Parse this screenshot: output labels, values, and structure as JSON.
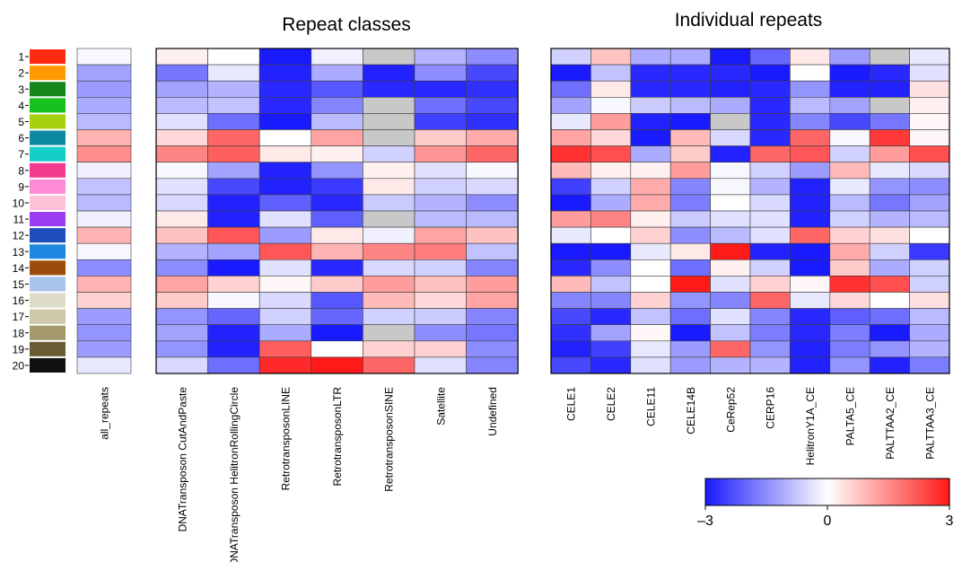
{
  "chart_data": {
    "type": "heatmap",
    "row_labels": [
      "1",
      "2",
      "3",
      "4",
      "5",
      "6",
      "7",
      "8",
      "9",
      "10",
      "11",
      "12",
      "13",
      "14",
      "15",
      "16",
      "17",
      "18",
      "19",
      "20"
    ],
    "row_colors": [
      "#ff2a12",
      "#ff9900",
      "#14861c",
      "#17c21e",
      "#a6d20d",
      "#0d8aa0",
      "#14cec8",
      "#f23b8e",
      "#ff8ad6",
      "#fdc1d8",
      "#9b3df0",
      "#1f4fbc",
      "#1c88e0",
      "#9a4d0b",
      "#a9c4ea",
      "#dddcc8",
      "#cec7a8",
      "#a59a6c",
      "#6a5d35",
      "#111111"
    ],
    "color_scale": {
      "min": -3,
      "max": 3,
      "ticks": [
        "–3",
        "0",
        "3"
      ],
      "colors": {
        "low": "#1a1aff",
        "mid": "#ffffff",
        "high": "#ff1a1a"
      },
      "na_color": "#c8c8c8"
    },
    "panels": [
      {
        "id": "all",
        "title": "",
        "columns": [
          "all_repeats"
        ],
        "values": [
          [
            -0.1
          ],
          [
            -1.2
          ],
          [
            -1.3
          ],
          [
            -1.1
          ],
          [
            -0.9
          ],
          [
            1.0
          ],
          [
            1.5
          ],
          [
            -0.2
          ],
          [
            -0.8
          ],
          [
            -0.9
          ],
          [
            -0.2
          ],
          [
            1.0
          ],
          [
            -0.1
          ],
          [
            -1.5
          ],
          [
            1.0
          ],
          [
            0.6
          ],
          [
            -1.3
          ],
          [
            -1.4
          ],
          [
            -1.3
          ],
          [
            -0.3
          ]
        ]
      },
      {
        "id": "classes",
        "title": "Repeat classes",
        "columns": [
          "DNATransposon CutAndPaste",
          "DNATransposon HelitronRollingCircle",
          "RetrotransposonLINE",
          "RetrotransposonLTR",
          "RetrotransposonSINE",
          "Satellite",
          "Undefined"
        ],
        "values": [
          [
            0.2,
            0.0,
            -3.0,
            -0.2,
            null,
            -1.0,
            -1.5
          ],
          [
            -1.8,
            -0.3,
            -2.9,
            -1.1,
            -2.9,
            -1.5,
            -2.4
          ],
          [
            -1.2,
            -1.0,
            -2.8,
            -2.2,
            -2.8,
            -2.8,
            -2.7
          ],
          [
            -0.9,
            -0.8,
            -2.8,
            -1.6,
            null,
            -1.9,
            -2.4
          ],
          [
            -0.4,
            -1.9,
            -3.0,
            -0.9,
            null,
            -2.5,
            -2.7
          ],
          [
            0.5,
            2.0,
            0.0,
            1.2,
            null,
            0.7,
            1.1
          ],
          [
            1.6,
            2.1,
            0.3,
            0.2,
            -0.6,
            1.4,
            2.0
          ],
          [
            -0.1,
            -1.2,
            -2.9,
            -1.4,
            0.2,
            -0.4,
            -0.1
          ],
          [
            -0.4,
            -2.4,
            -2.9,
            -2.6,
            0.3,
            -0.6,
            -0.5
          ],
          [
            -0.5,
            -2.9,
            -2.1,
            -2.8,
            -0.7,
            -1.0,
            -1.5
          ],
          [
            0.3,
            -2.9,
            -0.4,
            -2.1,
            null,
            -0.9,
            -0.9
          ],
          [
            0.8,
            2.2,
            -1.3,
            0.3,
            -0.2,
            1.2,
            0.8
          ],
          [
            -1.0,
            -1.2,
            2.2,
            1.0,
            1.6,
            1.7,
            -0.8
          ],
          [
            -1.5,
            -3.0,
            -0.4,
            -2.8,
            -0.5,
            -0.6,
            -1.6
          ],
          [
            1.2,
            0.6,
            0.1,
            0.7,
            1.3,
            0.8,
            1.3
          ],
          [
            0.7,
            -0.1,
            -0.5,
            -2.2,
            0.9,
            0.5,
            1.2
          ],
          [
            -1.4,
            -2.0,
            -0.6,
            -2.0,
            -0.6,
            -0.7,
            -1.6
          ],
          [
            -1.2,
            -2.9,
            -1.1,
            -3.0,
            null,
            -1.5,
            -1.8
          ],
          [
            -1.4,
            -2.9,
            2.1,
            0.0,
            0.6,
            0.6,
            -1.5
          ],
          [
            -0.5,
            -1.9,
            2.8,
            3.0,
            2.0,
            -0.4,
            -1.6
          ]
        ]
      },
      {
        "id": "individual",
        "title": "Individual repeats",
        "columns": [
          "CELE1",
          "CELE2",
          "CELE11",
          "CELE14B",
          "CeRep52",
          "CERP16",
          "HelitronY1A_CE",
          "PALTA5_CE",
          "PALTTAA2_CE",
          "PALTTAA3_CE"
        ],
        "values": [
          [
            -0.6,
            0.8,
            -1.1,
            -1.1,
            -3.0,
            -2.0,
            0.3,
            -1.3,
            null,
            -0.3
          ],
          [
            -3.0,
            -0.8,
            -2.8,
            -2.8,
            -2.8,
            -3.0,
            0.0,
            -3.0,
            -2.8,
            -0.4
          ],
          [
            -1.9,
            0.3,
            -2.8,
            -2.8,
            -2.9,
            -2.8,
            -1.4,
            -2.9,
            -2.9,
            0.4
          ],
          [
            -1.2,
            -0.1,
            -0.7,
            -0.9,
            -1.1,
            -2.8,
            -0.9,
            -1.2,
            null,
            0.2
          ],
          [
            -0.3,
            1.3,
            -2.9,
            -3.0,
            null,
            -2.8,
            -1.6,
            -2.4,
            -1.8,
            0.1
          ],
          [
            1.2,
            0.5,
            -3.0,
            0.9,
            -0.5,
            -2.8,
            2.0,
            -0.1,
            2.6,
            0.1
          ],
          [
            2.7,
            2.3,
            -1.1,
            0.7,
            -2.9,
            2.0,
            2.2,
            -0.6,
            1.3,
            2.3
          ],
          [
            0.9,
            0.2,
            0.2,
            1.3,
            -0.1,
            -0.6,
            -1.3,
            0.9,
            -0.3,
            -0.5
          ],
          [
            -2.5,
            -0.6,
            1.1,
            -1.6,
            -0.1,
            -1.0,
            -2.9,
            -0.3,
            -1.4,
            -1.5
          ],
          [
            -3.0,
            -1.1,
            1.1,
            -1.7,
            0.0,
            -0.5,
            -2.9,
            -0.9,
            -1.8,
            -1.2
          ],
          [
            1.3,
            1.6,
            0.2,
            -0.7,
            -0.4,
            -0.4,
            -2.9,
            -0.6,
            -1.0,
            -0.9
          ],
          [
            -0.3,
            0.0,
            0.6,
            -1.5,
            -0.9,
            -0.4,
            2.0,
            0.6,
            0.4,
            0.0
          ],
          [
            -3.0,
            -3.0,
            -0.3,
            0.3,
            3.0,
            -2.9,
            -3.0,
            1.1,
            -0.6,
            -2.6
          ],
          [
            -2.8,
            -1.5,
            0.0,
            -1.9,
            0.2,
            -0.6,
            -3.0,
            0.7,
            -1.1,
            -0.6
          ],
          [
            0.9,
            -0.8,
            0.0,
            3.0,
            -0.4,
            0.6,
            0.1,
            2.7,
            2.3,
            -0.6
          ],
          [
            -1.6,
            -1.6,
            0.6,
            -1.4,
            -1.6,
            2.0,
            -0.3,
            0.5,
            0.0,
            0.4
          ],
          [
            -2.4,
            -2.8,
            -0.8,
            -1.9,
            -0.4,
            -1.6,
            -2.8,
            -2.1,
            -1.9,
            -0.9
          ],
          [
            -2.7,
            -1.2,
            0.1,
            -3.0,
            -0.8,
            -1.7,
            -2.8,
            -1.7,
            -3.0,
            -1.1
          ],
          [
            -2.9,
            -2.5,
            -0.3,
            -1.3,
            2.0,
            -1.4,
            -2.9,
            -1.7,
            -1.4,
            -1.0
          ],
          [
            -2.4,
            -2.8,
            -0.4,
            -1.3,
            -1.0,
            -1.0,
            -2.9,
            -1.4,
            -2.9,
            -1.7
          ]
        ]
      }
    ]
  }
}
